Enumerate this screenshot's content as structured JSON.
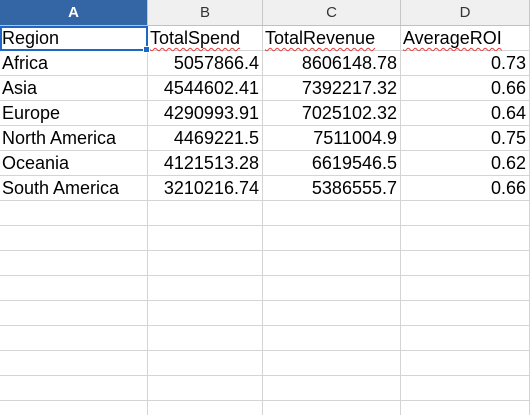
{
  "sheet": {
    "columns": [
      "A",
      "B",
      "C",
      "D"
    ],
    "selected_column": "A",
    "headers": [
      "Region",
      "TotalSpend",
      "TotalRevenue",
      "AverageROI"
    ],
    "rows": [
      [
        "Africa",
        "5057866.4",
        "8606148.78",
        "0.73"
      ],
      [
        "Asia",
        "4544602.41",
        "7392217.32",
        "0.66"
      ],
      [
        "Europe",
        "4290993.91",
        "7025102.32",
        "0.64"
      ],
      [
        "North America",
        "4469221.5",
        "7511004.9",
        "0.75"
      ],
      [
        "Oceania",
        "4121513.28",
        "6619546.5",
        "0.62"
      ],
      [
        "South America",
        "3210216.74",
        "5386555.7",
        "0.66"
      ]
    ],
    "empty_rows": 9,
    "active_cell": "A1",
    "colors": {
      "selected_header_bg": "#3465a4",
      "header_bg": "#f0f0f0",
      "gridline": "#d4d4d4",
      "active_border": "#1e66c8",
      "spellcheck": "#e53c3c"
    }
  }
}
